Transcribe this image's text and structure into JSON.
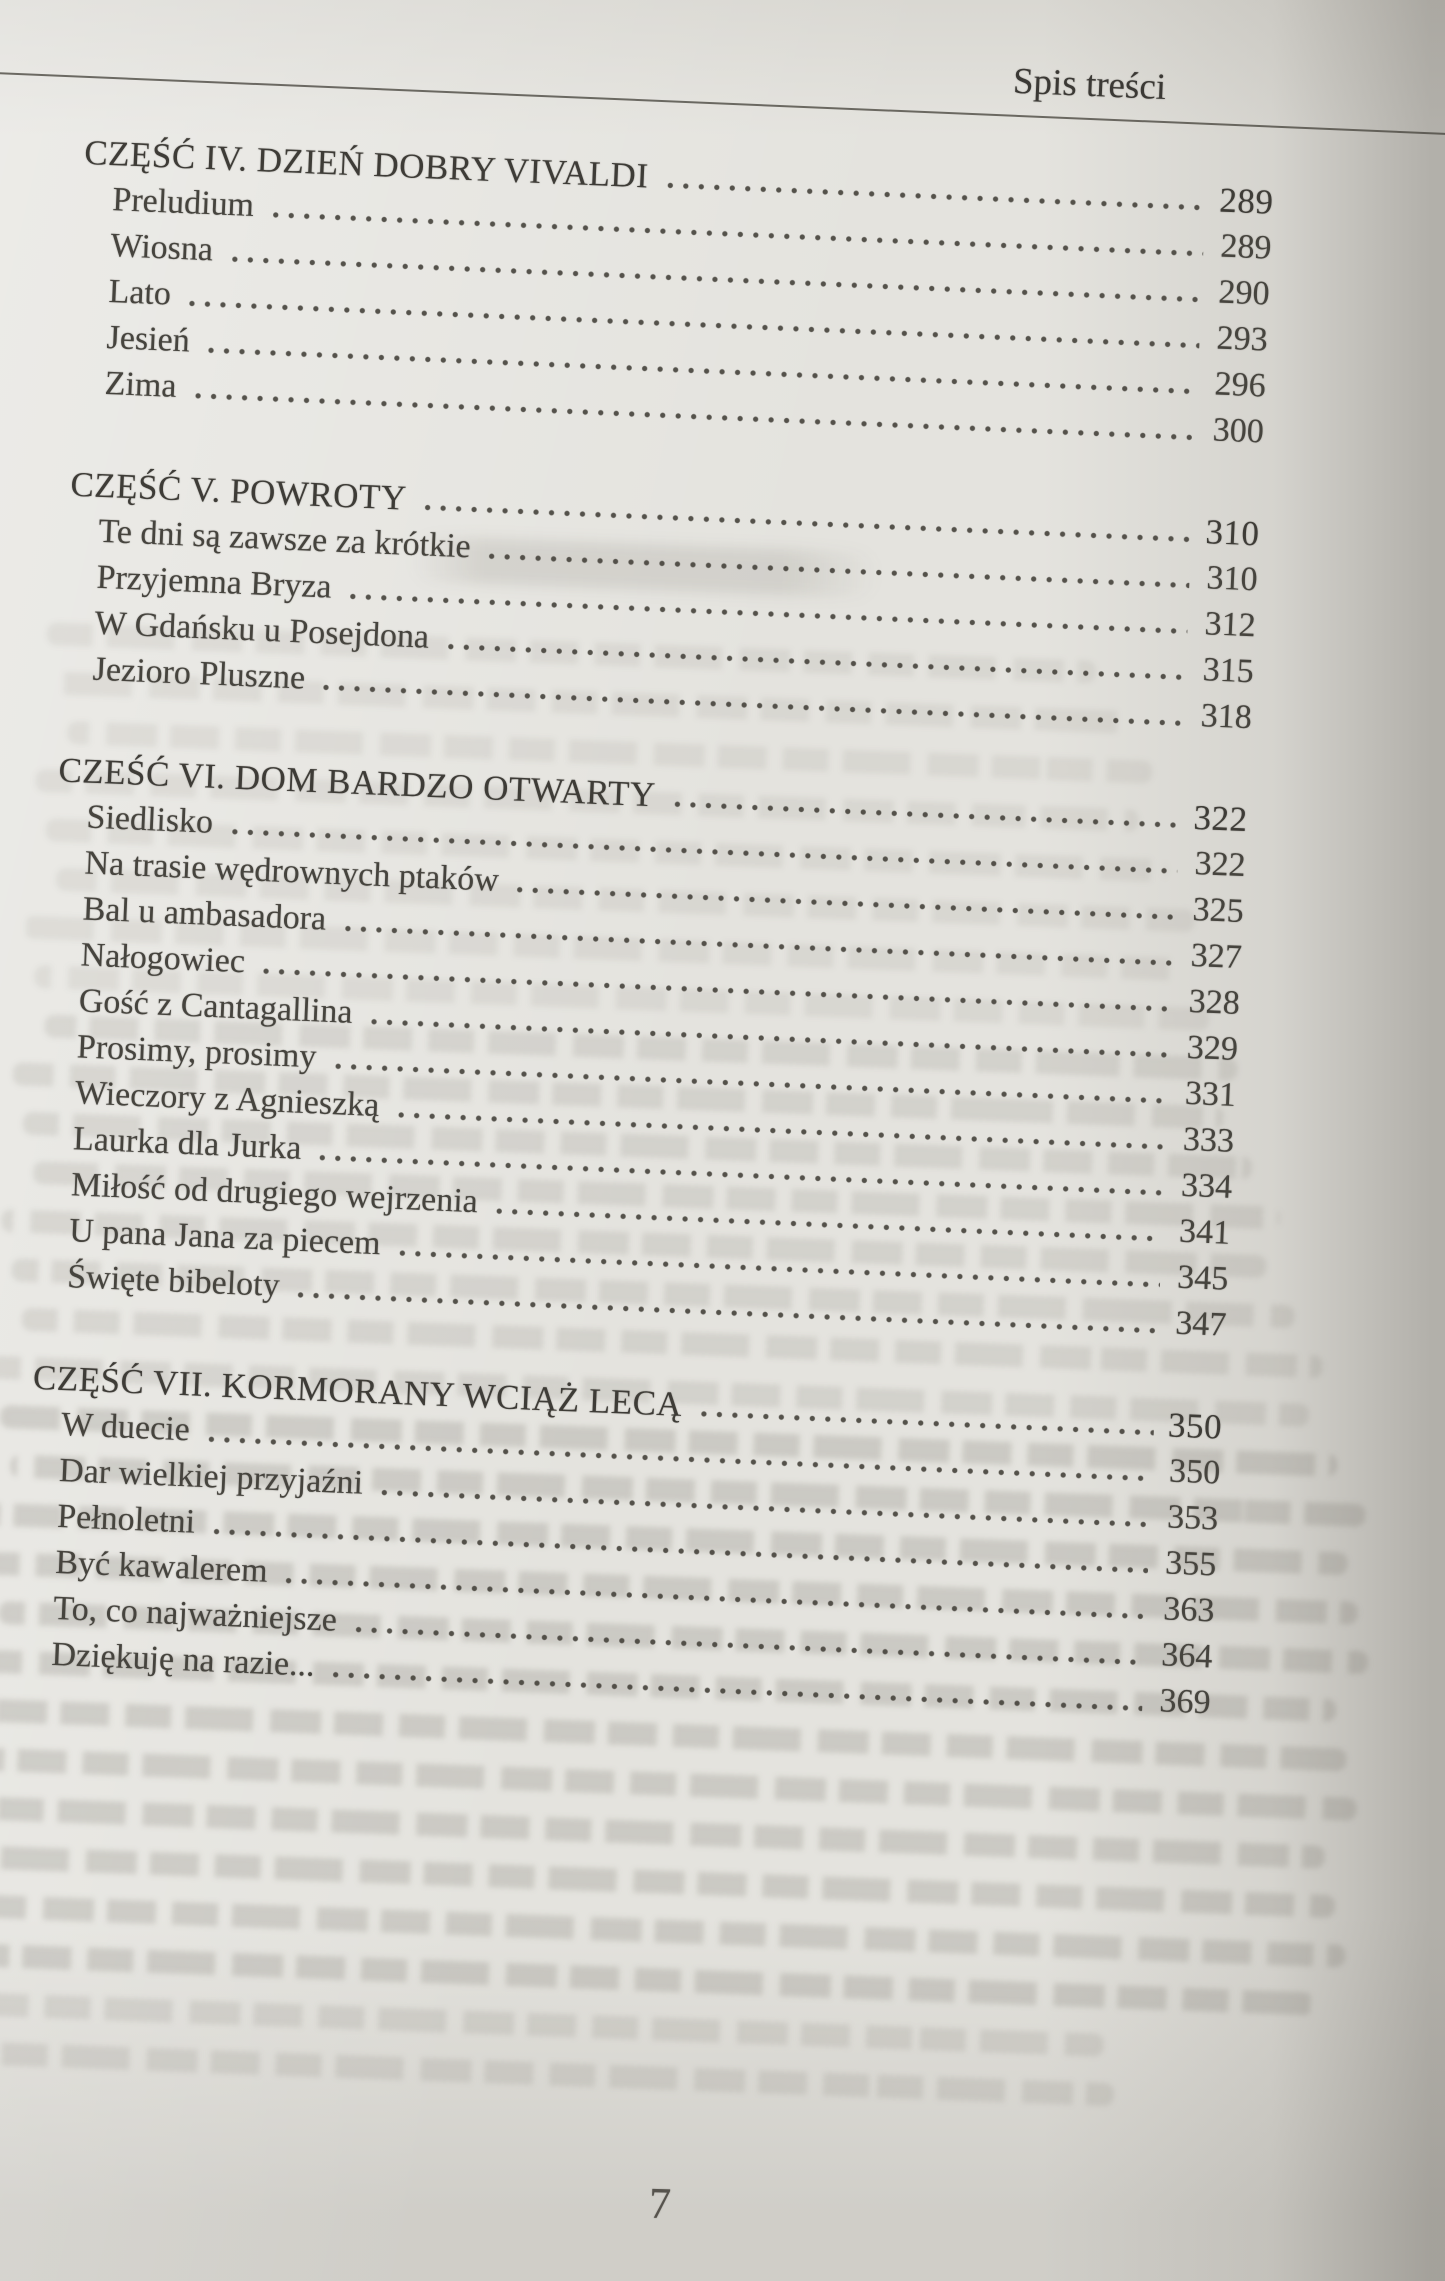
{
  "header": {
    "title": "Spis treści"
  },
  "footer": {
    "page_number": "7"
  },
  "toc": {
    "sections": [
      {
        "heading": {
          "label": "CZĘŚĆ IV. DZIEŃ DOBRY VIVALDI",
          "page": "289"
        },
        "entries": [
          {
            "label": "Preludium",
            "page": "289"
          },
          {
            "label": "Wiosna",
            "page": "290"
          },
          {
            "label": "Lato",
            "page": "293"
          },
          {
            "label": "Jesień",
            "page": "296"
          },
          {
            "label": "Zima",
            "page": "300"
          }
        ]
      },
      {
        "heading": {
          "label": "CZĘŚĆ V. POWROTY",
          "page": "310"
        },
        "entries": [
          {
            "label": "Te dni są zawsze za krótkie",
            "page": "310"
          },
          {
            "label": "Przyjemna Bryza",
            "page": "312"
          },
          {
            "label": "W Gdańsku u Posejdona",
            "page": "315"
          },
          {
            "label": "Jezioro Pluszne",
            "page": "318"
          }
        ]
      },
      {
        "heading": {
          "label": "CZEŚĆ VI. DOM BARDZO OTWARTY",
          "page": "322"
        },
        "entries": [
          {
            "label": "Siedlisko",
            "page": "322"
          },
          {
            "label": "Na trasie wędrownych ptaków",
            "page": "325"
          },
          {
            "label": "Bal u ambasadora",
            "page": "327"
          },
          {
            "label": "Nałogowiec",
            "page": "328"
          },
          {
            "label": "Gość z Cantagallina",
            "page": "329"
          },
          {
            "label": "Prosimy, prosimy",
            "page": "331"
          },
          {
            "label": "Wieczory z Agnieszką",
            "page": "333"
          },
          {
            "label": "Laurka dla Jurka",
            "page": "334"
          },
          {
            "label": "Miłość od drugiego wejrzenia",
            "page": "341"
          },
          {
            "label": "U pana Jana za piecem",
            "page": "345"
          },
          {
            "label": "Święte bibeloty",
            "page": "347"
          }
        ]
      },
      {
        "heading": {
          "label": "CZĘŚĆ VII. KORMORANY WCIĄŻ LECĄ",
          "page": "350"
        },
        "entries": [
          {
            "label": "W duecie",
            "page": "350"
          },
          {
            "label": "Dar wielkiej przyjaźni",
            "page": "353"
          },
          {
            "label": "Pełnoletni",
            "page": "355"
          },
          {
            "label": "Być kawalerem",
            "page": "363"
          },
          {
            "label": "To, co najważniejsze",
            "page": "364"
          },
          {
            "label": "Dziękuję na razie...",
            "page": "369"
          }
        ]
      }
    ]
  }
}
